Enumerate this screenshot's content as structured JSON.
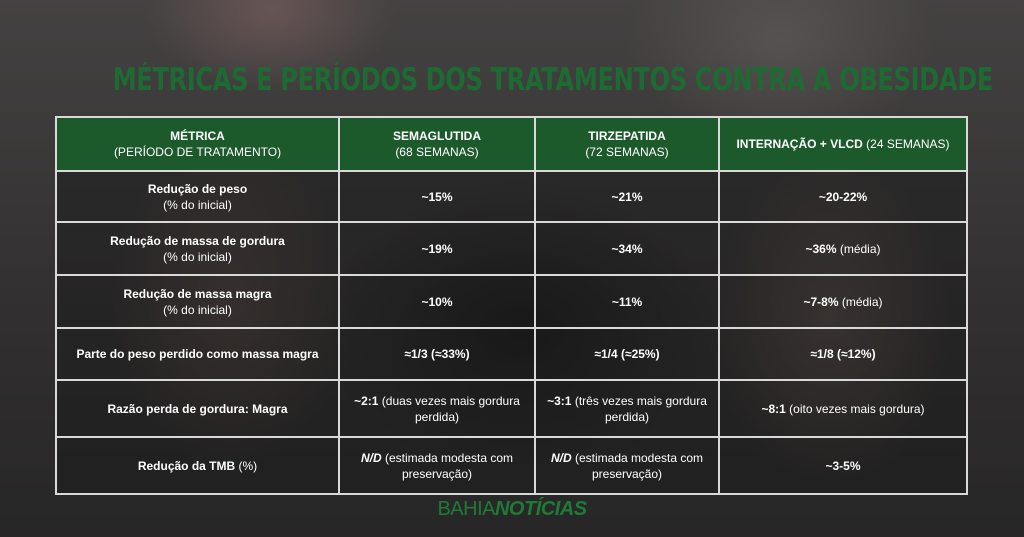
{
  "title": "MÉTRICAS E PERÍODOS DOS TRATAMENTOS CONTRA A OBESIDADE",
  "header": [
    {
      "main": "MÉTRICA",
      "sub": "(PERÍODO DE TRATAMENTO)"
    },
    {
      "main": "SEMAGLUTIDA",
      "sub": "(68 SEMANAS)"
    },
    {
      "main": "TIRZEPATIDA",
      "sub": "(72 SEMANAS)"
    },
    {
      "main": "INTERNAÇÃO + VLCD",
      "sub": "(24 SEMANAS)"
    }
  ],
  "rows": [
    {
      "metric": "Redução de peso",
      "metric_sub": "(% do inicial)",
      "sema": {
        "bold": "~15%",
        "rest": ""
      },
      "tirz": {
        "bold": "~21%",
        "rest": ""
      },
      "vlcd": {
        "bold": "~20-22%",
        "rest": ""
      }
    },
    {
      "metric": "Redução de massa de gordura",
      "metric_sub": "(% do inicial)",
      "sema": {
        "bold": "~19%",
        "rest": ""
      },
      "tirz": {
        "bold": "~34%",
        "rest": ""
      },
      "vlcd": {
        "bold": "~36%",
        "rest": " (média)"
      }
    },
    {
      "metric": "Redução de massa magra",
      "metric_sub": "(% do inicial)",
      "sema": {
        "bold": "~10%",
        "rest": ""
      },
      "tirz": {
        "bold": "~11%",
        "rest": ""
      },
      "vlcd": {
        "bold": "~7-8%",
        "rest": " (média)"
      }
    },
    {
      "metric": "Parte do peso perdido como massa magra",
      "metric_sub": "",
      "sema": {
        "bold": "≈1/3 (≈33%)",
        "rest": ""
      },
      "tirz": {
        "bold": "≈1/4 (≈25%)",
        "rest": ""
      },
      "vlcd": {
        "bold": "≈1/8 (≈12%)",
        "rest": ""
      }
    },
    {
      "metric": "Razão perda de gordura: Magra",
      "metric_sub": "",
      "sema": {
        "bold": "~2:1",
        "rest": " (duas vezes mais gordura perdida)"
      },
      "tirz": {
        "bold": "~3:1",
        "rest": " (três vezes mais gordura perdida)"
      },
      "vlcd": {
        "bold": "~8:1",
        "rest": " (oito vezes mais gordura)"
      }
    },
    {
      "metric": "Redução da TMB",
      "metric_rest": " (%)",
      "sema": {
        "bold": "N/D",
        "rest": " (estimada modesta com preservação)"
      },
      "tirz": {
        "bold": "N/D",
        "rest": " (estimada modesta com preservação)"
      },
      "vlcd": {
        "bold": "~3-5%",
        "rest": ""
      }
    }
  ],
  "logo": {
    "part1": "BAHIA",
    "part2": "NOTÍCIAS"
  },
  "colors": {
    "title": "#1e6a33",
    "header_bg": "#1c5a2c",
    "border": "#d9d9d9"
  }
}
